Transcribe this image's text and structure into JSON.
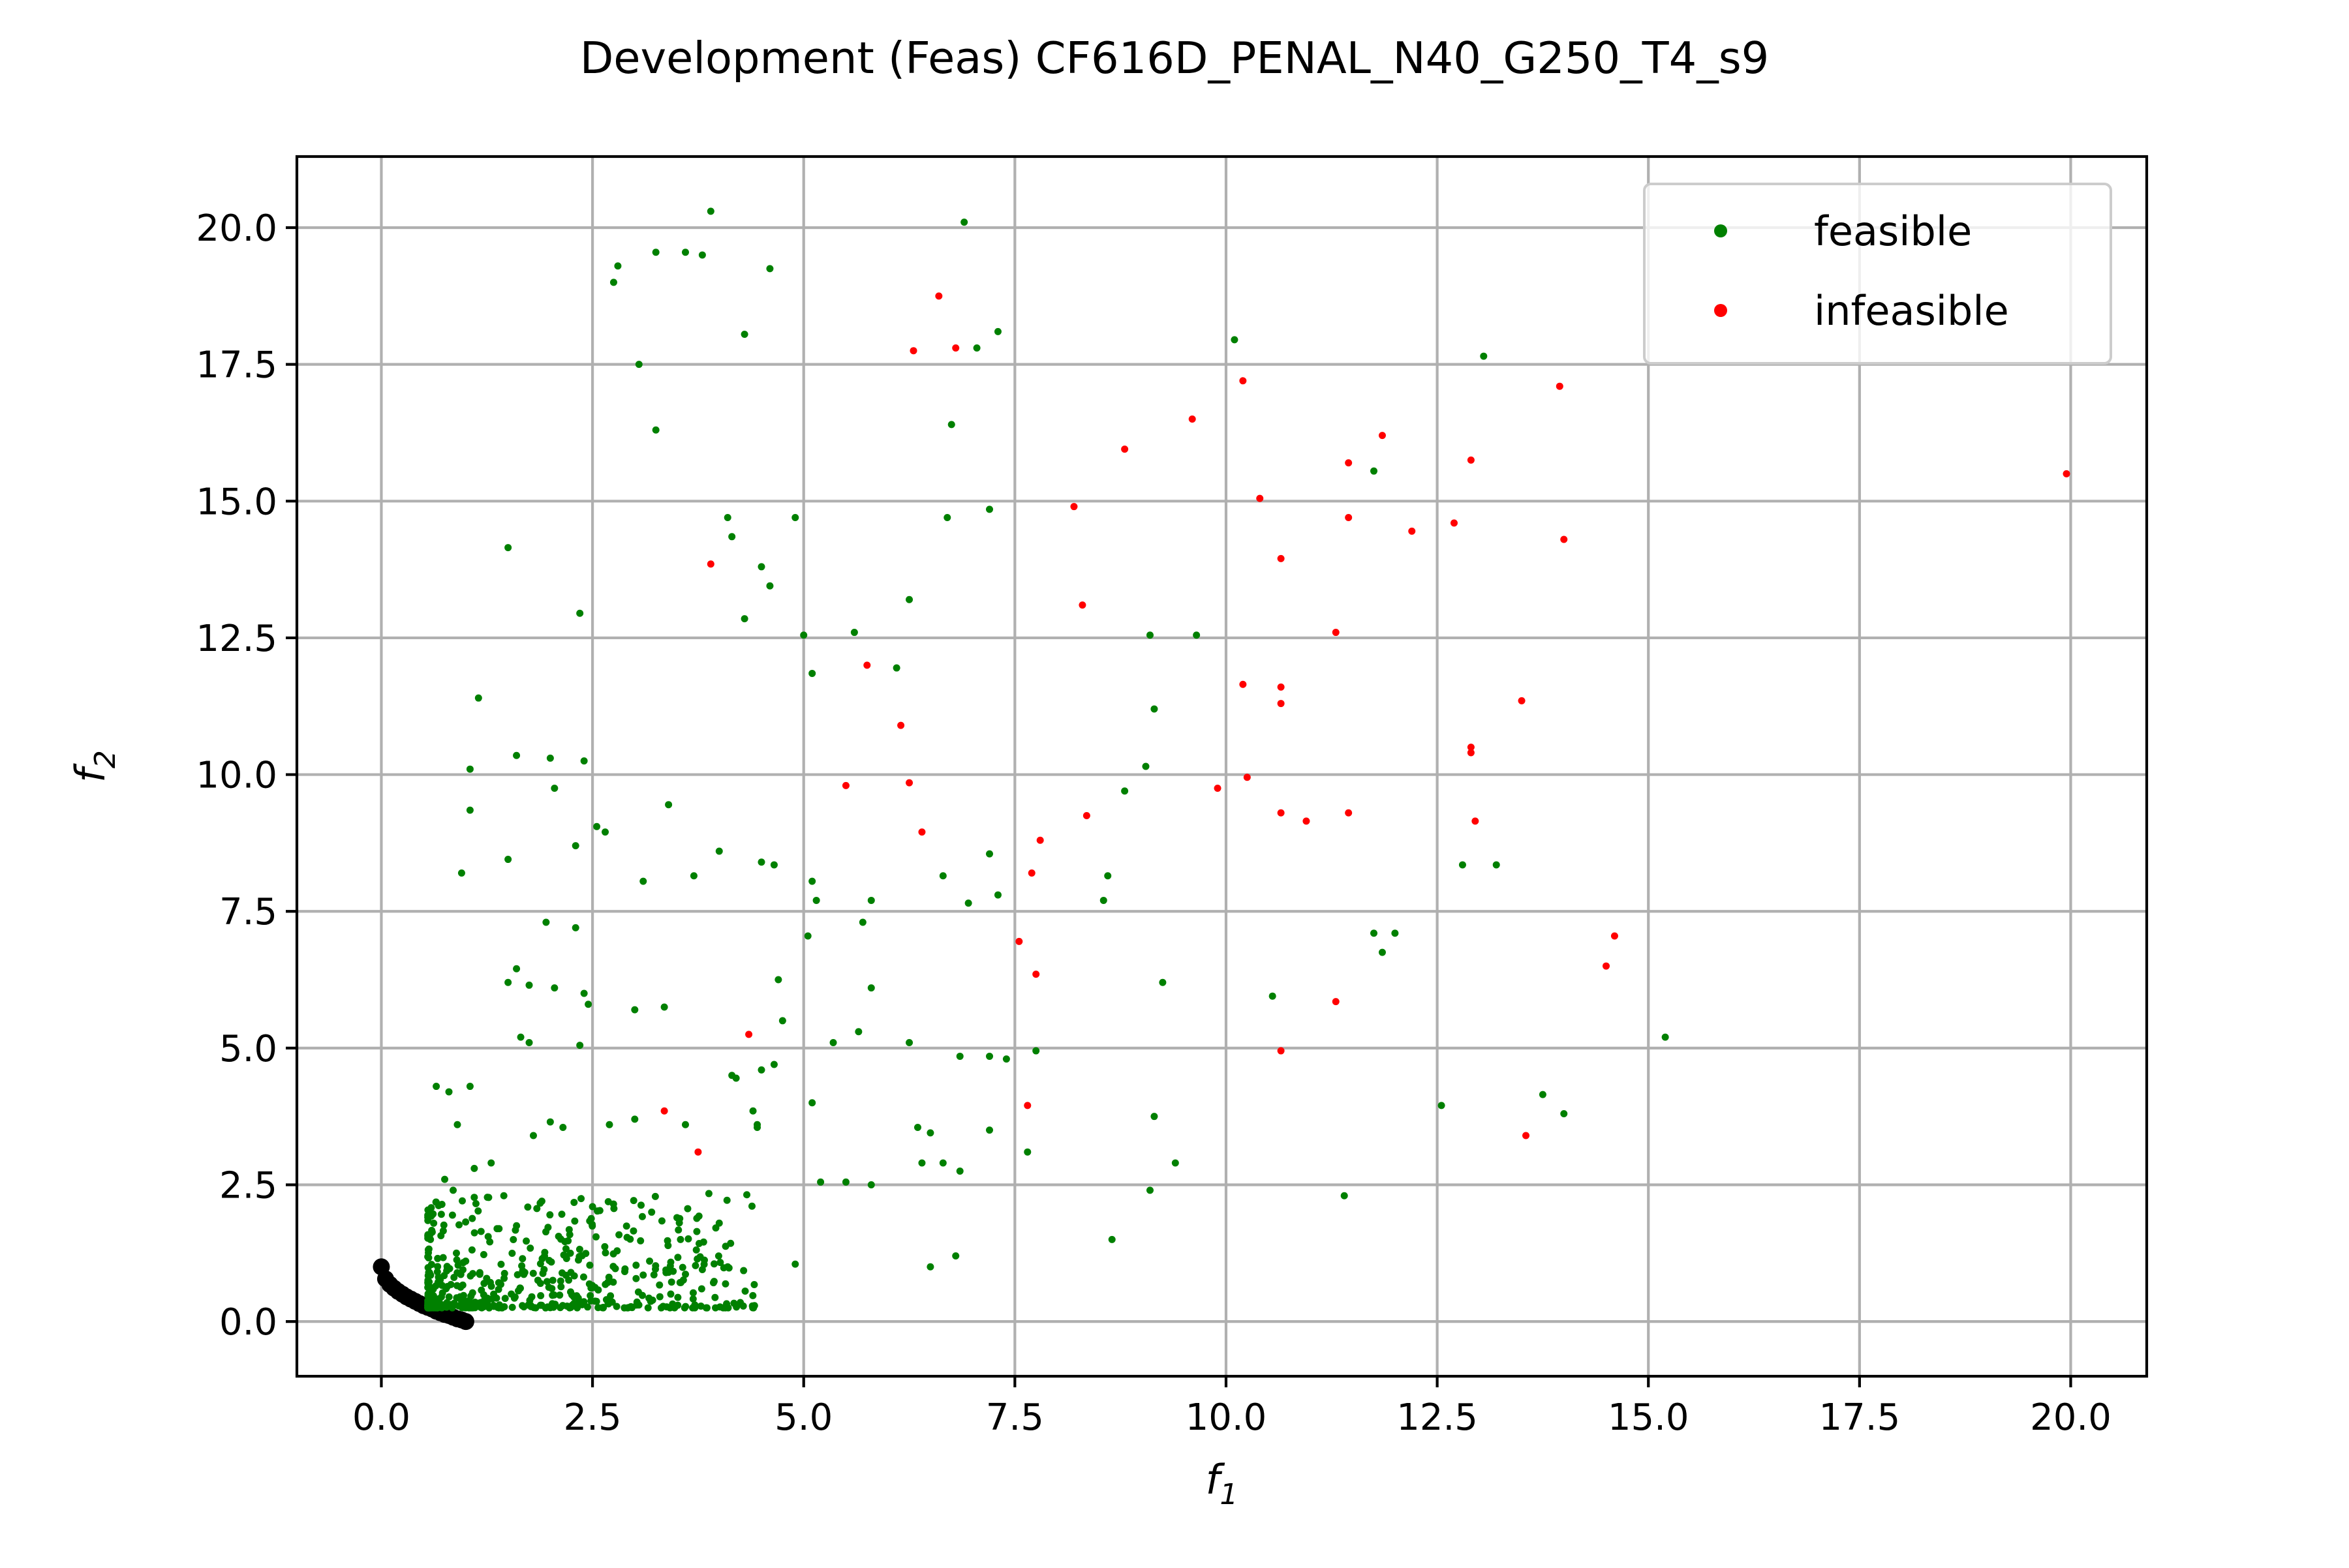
{
  "chart_data": {
    "type": "scatter",
    "title": "Development (Feas) CF616D_PENAL_N40_G250_T4_s9",
    "xlabel": "f",
    "xlabel_sub": "1",
    "ylabel": "f",
    "ylabel_sub": "2",
    "xlim": [
      -1.0,
      20.9
    ],
    "ylim": [
      -1.0,
      21.3
    ],
    "xticks": [
      0.0,
      2.5,
      5.0,
      7.5,
      10.0,
      12.5,
      15.0,
      17.5,
      20.0
    ],
    "yticks": [
      0.0,
      2.5,
      5.0,
      7.5,
      10.0,
      12.5,
      15.0,
      17.5,
      20.0
    ],
    "xtick_labels": [
      "0.0",
      "2.5",
      "5.0",
      "7.5",
      "10.0",
      "12.5",
      "15.0",
      "17.5",
      "20.0"
    ],
    "ytick_labels": [
      "0.0",
      "2.5",
      "5.0",
      "7.5",
      "10.0",
      "12.5",
      "15.0",
      "17.5",
      "20.0"
    ],
    "grid": true,
    "legend_position": "top-right",
    "legend": [
      {
        "label": "feasible",
        "color": "#008000"
      },
      {
        "label": "infeasible",
        "color": "#ff0000"
      }
    ],
    "pareto_front": {
      "color": "#000000",
      "x": [
        0.0,
        0.05,
        0.1,
        0.15,
        0.2,
        0.25,
        0.3,
        0.35,
        0.4,
        0.45,
        0.5,
        0.55,
        0.6,
        0.65,
        0.7,
        0.75,
        0.8,
        0.85,
        0.9,
        0.95,
        1.0
      ],
      "y": [
        1.0,
        0.78,
        0.68,
        0.61,
        0.55,
        0.5,
        0.45,
        0.41,
        0.37,
        0.33,
        0.29,
        0.26,
        0.23,
        0.19,
        0.16,
        0.13,
        0.11,
        0.08,
        0.05,
        0.03,
        0.0
      ]
    },
    "series": [
      {
        "name": "feasible",
        "color": "#008000",
        "x": [
          3.9,
          6.9,
          2.8,
          2.75,
          3.25,
          3.6,
          3.8,
          4.6,
          4.3,
          3.05,
          7.05,
          7.3,
          10.1,
          13.05,
          6.75,
          3.25,
          11.75,
          1.5,
          4.1,
          4.15,
          4.9,
          6.7,
          7.2,
          4.5,
          4.6,
          2.35,
          4.3,
          6.25,
          5.0,
          5.6,
          9.1,
          9.65,
          5.1,
          6.1,
          1.15,
          9.15,
          1.6,
          2.0,
          2.4,
          1.05,
          2.05,
          9.05,
          8.8,
          2.55,
          2.65,
          1.05,
          3.4,
          4.0,
          2.3,
          1.5,
          0.95,
          3.7,
          3.1,
          4.5,
          4.65,
          5.1,
          7.2,
          6.65,
          12.8,
          13.2,
          5.8,
          8.6,
          6.95,
          7.3,
          8.55,
          5.15,
          5.05,
          5.7,
          1.95,
          11.75,
          12.0,
          11.85,
          2.3,
          1.6,
          1.5,
          1.75,
          2.05,
          2.4,
          4.7,
          9.25,
          5.8,
          2.45,
          10.55,
          3.0,
          3.35,
          2.35,
          1.65,
          1.75,
          4.75,
          15.2,
          6.25,
          5.65,
          5.35,
          7.75,
          7.2,
          7.4,
          6.85,
          4.15,
          4.2,
          4.5,
          4.65,
          5.1,
          12.55,
          13.75,
          14.0,
          9.15,
          4.4,
          4.45,
          0.65,
          0.8,
          1.05,
          0.9,
          2.0,
          2.7,
          3.0,
          3.6,
          4.45,
          6.35,
          6.5,
          7.2,
          2.15,
          1.8,
          7.65,
          9.4,
          6.65,
          6.85,
          5.2,
          5.5,
          5.8,
          8.65,
          9.1,
          6.4,
          11.4,
          6.5,
          6.8,
          4.9,
          4.1,
          3.8,
          3.4,
          3.1,
          1.3,
          1.1,
          0.75,
          0.85,
          1.45,
          1.9,
          2.5,
          3.2,
          3.5,
          4.0
        ],
        "y": [
          20.3,
          20.1,
          19.3,
          19.0,
          19.55,
          19.55,
          19.5,
          19.25,
          18.05,
          17.5,
          17.8,
          18.1,
          17.95,
          17.65,
          16.4,
          16.3,
          15.55,
          14.15,
          14.7,
          14.35,
          14.7,
          14.7,
          14.85,
          13.8,
          13.45,
          12.95,
          12.85,
          13.2,
          12.55,
          12.6,
          12.55,
          12.55,
          11.85,
          11.95,
          11.4,
          11.2,
          10.35,
          10.3,
          10.25,
          10.1,
          9.75,
          10.15,
          9.7,
          9.05,
          8.95,
          9.35,
          9.45,
          8.6,
          8.7,
          8.45,
          8.2,
          8.15,
          8.05,
          8.4,
          8.35,
          8.05,
          8.55,
          8.15,
          8.35,
          8.35,
          7.7,
          8.15,
          7.65,
          7.8,
          7.7,
          7.7,
          7.05,
          7.3,
          7.3,
          7.1,
          7.1,
          6.75,
          7.2,
          6.45,
          6.2,
          6.15,
          6.1,
          6.0,
          6.25,
          6.2,
          6.1,
          5.8,
          5.95,
          5.7,
          5.75,
          5.05,
          5.2,
          5.1,
          5.5,
          5.2,
          5.1,
          5.3,
          5.1,
          4.95,
          4.85,
          4.8,
          4.85,
          4.5,
          4.45,
          4.6,
          4.7,
          4.0,
          3.95,
          4.15,
          3.8,
          3.75,
          3.85,
          3.6,
          4.3,
          4.2,
          4.3,
          3.6,
          3.65,
          3.6,
          3.7,
          3.6,
          3.55,
          3.55,
          3.45,
          3.5,
          3.55,
          3.4,
          3.1,
          2.9,
          2.9,
          2.75,
          2.55,
          2.55,
          2.5,
          1.5,
          2.4,
          2.9,
          2.3,
          1.0,
          1.2,
          1.05,
          1.0,
          0.95,
          0.9,
          0.85,
          2.9,
          2.8,
          2.6,
          2.4,
          2.3,
          2.2,
          2.1,
          2.0,
          1.9,
          1.8
        ]
      },
      {
        "name": "infeasible",
        "color": "#ff0000",
        "x": [
          6.6,
          6.3,
          6.8,
          13.95,
          10.2,
          9.6,
          11.85,
          8.8,
          19.95,
          12.9,
          11.45,
          10.4,
          8.2,
          11.45,
          12.2,
          12.7,
          14.0,
          3.9,
          10.65,
          8.3,
          11.3,
          5.75,
          10.2,
          10.65,
          10.65,
          6.15,
          13.5,
          12.9,
          12.9,
          10.25,
          5.5,
          6.25,
          9.9,
          10.65,
          10.95,
          11.45,
          12.95,
          8.35,
          6.4,
          7.8,
          7.7,
          14.6,
          14.5,
          7.55,
          7.75,
          11.3,
          10.65,
          4.35,
          7.65,
          3.35,
          13.55,
          3.75
        ],
        "y": [
          18.75,
          17.75,
          17.8,
          17.1,
          17.2,
          16.5,
          16.2,
          15.95,
          15.5,
          15.75,
          15.7,
          15.05,
          14.9,
          14.7,
          14.45,
          14.6,
          14.3,
          13.85,
          13.95,
          13.1,
          12.6,
          12.0,
          11.65,
          11.6,
          11.3,
          10.9,
          11.35,
          10.5,
          10.4,
          9.95,
          9.8,
          9.85,
          9.75,
          9.3,
          9.15,
          9.3,
          9.15,
          9.25,
          8.95,
          8.8,
          8.2,
          7.05,
          6.5,
          6.95,
          6.35,
          5.85,
          4.95,
          5.25,
          3.95,
          3.85,
          3.4,
          3.1
        ]
      }
    ]
  }
}
